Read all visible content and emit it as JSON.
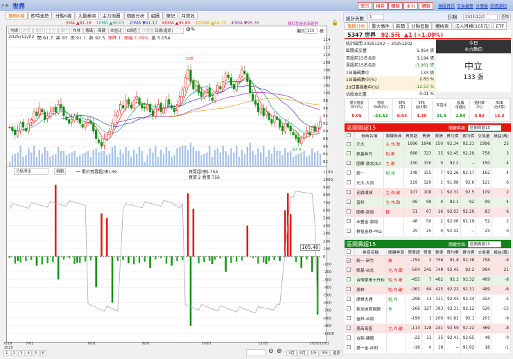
{
  "window": {
    "title": "世界",
    "search_icon": "search-icon"
  },
  "left_tabs": [
    "籌碼K線",
    "即時走勢",
    "分點K線",
    "大量券商",
    "主力地圖",
    "個股分析",
    "組圖",
    "筆記",
    "月營收"
  ],
  "ma_legend": [
    {
      "label": "5MA ▲91.16",
      "color": "#e31b1b"
    },
    {
      "label": "10MA ▲90.03",
      "color": "#20a090"
    },
    {
      "label": "20MA ▼91.17",
      "color": "#3040c0"
    },
    {
      "label": "60MA ▲95.80",
      "color": "#e31b1b"
    },
    {
      "label": "100MA ▲94.73",
      "color": "#e0a020"
    },
    {
      "label": "40MA ▼95.76",
      "color": "#a030a0"
    }
  ],
  "ma_note": "標紅色是為漸趨勢",
  "chart_toolbar": [
    "均線",
    "外資",
    "投信",
    "主力",
    "散戶",
    "布林",
    "籌碼",
    "庫藏",
    "本益比",
    "K線值",
    "分價圖"
  ],
  "chart_select": "日線(還原)",
  "display_label": "顯示",
  "display_value": "115",
  "display_unit": "根",
  "ohlc": {
    "date": "2025/12/02",
    "open": "開 91.7",
    "high": "高 93",
    "low": "低 91.1",
    "close": "收 92.5",
    "change": "漲跌 1",
    "pct": "漲幅 1.09%",
    "vol": "量 5,054"
  },
  "price_axis": [
    "114",
    "112",
    "110",
    "108",
    "106",
    "104",
    "102",
    "100",
    "98",
    "96",
    "94",
    "92",
    "90",
    "88",
    "86",
    "84",
    "82"
  ],
  "annotations": {
    "high": "108",
    "low": "87.0"
  },
  "lower": {
    "select": "分點淨出",
    "button": "相關",
    "legend1": "一 累計買賣超(張)-39",
    "legend2": "買賣超(張)-754",
    "legend3": "買張 2 賣張 756",
    "current": "105.48",
    "axis": [
      "1100",
      "1000",
      "900",
      "800",
      "700",
      "600",
      "500",
      "400",
      "300",
      "200",
      "100",
      "0",
      "-100",
      "-200",
      "-300",
      "-400",
      "-500",
      "-600",
      "-700",
      "-800",
      "-900",
      "-1000"
    ]
  },
  "x_axis": [
    "6/19\n2025",
    "7/01",
    "8/01",
    "9/01",
    "10/01",
    "11/03",
    "2025/12/02"
  ],
  "pages": [
    "1",
    "2",
    "3",
    "4",
    "5",
    "6"
  ],
  "range_buttons": [
    "3月",
    "6月",
    "1年",
    "3年",
    "還原"
  ],
  "chart_data": {
    "type": "candlestick",
    "ylim": [
      82,
      114
    ],
    "closes": [
      91,
      90,
      89,
      90,
      92,
      91,
      90,
      92,
      93,
      95,
      94,
      96,
      95,
      93,
      94,
      95,
      96,
      95,
      97,
      96,
      94,
      93,
      92,
      93,
      94,
      93,
      92,
      91,
      92,
      93,
      92,
      90,
      88,
      87,
      86,
      88,
      89,
      90,
      92,
      94,
      95,
      97,
      96,
      98,
      97,
      96,
      98,
      99,
      97,
      96,
      96,
      97,
      95,
      94,
      96,
      97,
      95,
      96,
      98,
      97,
      96,
      95,
      97,
      99,
      101,
      104,
      106,
      103,
      101,
      102,
      100,
      99,
      100,
      101,
      99,
      98,
      100,
      102,
      101,
      103,
      105,
      104,
      102,
      101,
      103,
      104,
      106,
      105,
      103,
      100,
      98,
      97,
      95,
      96,
      94,
      95,
      93,
      92,
      94,
      93,
      91,
      90,
      92,
      91,
      90,
      89,
      88,
      87,
      88,
      89,
      90,
      89,
      91,
      90,
      91,
      92.5
    ],
    "net_buy": [
      [
        3,
        -60
      ],
      [
        10,
        -120
      ],
      [
        17,
        930
      ],
      [
        18,
        -300
      ],
      [
        25,
        -80
      ],
      [
        32,
        -400
      ],
      [
        34,
        560
      ],
      [
        36,
        500
      ],
      [
        38,
        -600
      ],
      [
        44,
        -90
      ],
      [
        52,
        -150
      ],
      [
        60,
        -120
      ],
      [
        66,
        820
      ],
      [
        67,
        -900
      ],
      [
        68,
        620
      ],
      [
        75,
        -100
      ],
      [
        80,
        -200
      ],
      [
        88,
        400
      ],
      [
        95,
        -100
      ],
      [
        100,
        -60
      ],
      [
        102,
        600
      ],
      [
        103,
        820
      ],
      [
        104,
        550
      ],
      [
        108,
        -150
      ],
      [
        112,
        -200
      ],
      [
        114,
        -754
      ]
    ],
    "cumulative": [
      [
        0,
        650
      ],
      [
        28,
        700
      ],
      [
        29,
        -650
      ],
      [
        40,
        -700
      ],
      [
        42,
        650
      ],
      [
        60,
        700
      ],
      [
        64,
        650
      ],
      [
        65,
        -650
      ],
      [
        90,
        -700
      ],
      [
        100,
        -650
      ],
      [
        104,
        800
      ],
      [
        112,
        850
      ],
      [
        113,
        400
      ],
      [
        114,
        -750
      ]
    ]
  },
  "right": {
    "top_buttons": [
      "警示",
      "相券",
      "體驗",
      "主力",
      "體驗"
    ],
    "top_links": [
      "個股資訊",
      "交易彙整",
      "分價量",
      "訊價通知"
    ],
    "days_label": "統計天數",
    "days_value": "1",
    "date_label": "日期",
    "date_value": "2025/12/2",
    "query": "查詢",
    "tabs": [
      "籌碼分析",
      "重大事件",
      "新聞",
      "分點追蹤",
      "體檢表",
      "法人目標(105元)",
      "ETF"
    ],
    "stock": {
      "name": "5347 世界",
      "price": "92.5元",
      "change": "▲1 (+1.09%)"
    },
    "stats": [
      [
        "統計區間 20251202 ~ 20251202",
        ""
      ],
      [
        "區間成交量",
        "5,054 張"
      ],
      [
        "買超前15名合計",
        "3,194 張"
      ],
      [
        "賣超前15名合計",
        "-3,061 張"
      ],
      [
        "1日籌碼集中",
        "133 張"
      ],
      [
        "1日籌碼集中(%)",
        "2.63 %"
      ],
      [
        "20日籌碼集中(%)",
        "-12.53 %"
      ],
      [
        "佔股本比重",
        "0.01 %"
      ],
      [
        "區間周轉率",
        "0.27 %"
      ]
    ],
    "today_title": "今日",
    "today_sub": "主力動向",
    "today_state": "中立",
    "today_qty": "133 張",
    "metrics_head": [
      "累計營收\nYoY(%)",
      "營收\nMoM(%)",
      "EPS\n(季)",
      "EPS\n(近4季)",
      "本益比",
      "股價\n淨值比",
      "殖利率\n(%)",
      "ROE\n(近4季)"
    ],
    "metrics": [
      "9.05",
      "-23.52",
      "0.93",
      "4.29",
      "21.5",
      "2.84",
      "4.92",
      "13.2"
    ],
    "buy_title": "區間買超15",
    "buy_key": "關鍵券商:",
    "buy_select": "區間買超15",
    "cols": [
      "券商名稱",
      "關鍵券商",
      "買賣超",
      "買張",
      "賣張",
      "買均價",
      "賣均價",
      "交易量",
      "損益(萬)"
    ],
    "buy_rows": [
      [
        "元大",
        "主,作,散",
        "1696",
        "1846",
        "150",
        "92.34",
        "92.21",
        "1996",
        "25",
        "g"
      ],
      [
        "凱基新竹",
        "短,散",
        "688",
        "723",
        "35",
        "92.45",
        "92.29",
        "758",
        "3",
        "g"
      ],
      [
        "國票-敦北法人",
        "主,散",
        "150",
        "150",
        "0",
        "92.2",
        "--",
        "150",
        "4",
        "g"
      ],
      [
        "統一",
        "短,作",
        "148",
        "155",
        "7",
        "92.26",
        "92.17",
        "162",
        "4",
        ""
      ],
      [
        "元大-大同",
        "",
        "119",
        "120",
        "1",
        "91.98",
        "92.6",
        "121",
        "6",
        ""
      ],
      [
        "花旗環球",
        "主,作,散",
        "107",
        "108",
        "1",
        "92.31",
        "92.5",
        "109",
        "2",
        "r"
      ],
      [
        "富邦",
        "主,作,散",
        "99",
        "99",
        "0",
        "92.1",
        "92",
        "99",
        "4",
        "g"
      ],
      [
        "國泰-敦南",
        "散",
        "51",
        "67",
        "16",
        "92.03",
        "92.29",
        "83",
        "6",
        "r"
      ],
      [
        "永豐金-敦南",
        "",
        "48",
        "50",
        "2",
        "92.06",
        "92.19",
        "52",
        "2",
        ""
      ],
      [
        "群益金鼎-中山",
        "",
        "25",
        "25",
        "0",
        "92.42",
        "--",
        "25",
        "0",
        ""
      ]
    ],
    "sell_title": "區間賣超15",
    "sell_key": "關鍵券商:",
    "sell_select": "區間賣超15",
    "sell_rows": [
      [
        "統一-新竹",
        "散",
        "-754",
        "2",
        "756",
        "91.8",
        "92.38",
        "758",
        "-9",
        "r"
      ],
      [
        "凱基-台北",
        "主,作,散",
        "-504",
        "245",
        "749",
        "92.45",
        "92.2",
        "994",
        "-21",
        "r"
      ],
      [
        "台灣摩根士丹利",
        "短,作,散",
        "-455",
        "7",
        "462",
        "92.2",
        "92.32",
        "469",
        "-8",
        "g"
      ],
      [
        "美林",
        "短,作,散",
        "-361",
        "64",
        "425",
        "92.22",
        "92.31",
        "489",
        "-6",
        "r"
      ],
      [
        "摩根大通",
        "短,作",
        "-298",
        "13",
        "311",
        "92.45",
        "92.34",
        "324",
        "-5",
        ""
      ],
      [
        "新加坡商瑞銀",
        "作",
        "-266",
        "127",
        "393",
        "92.31",
        "92.12",
        "520",
        "-15",
        ""
      ],
      [
        "富邦-台南",
        "",
        "-199",
        "1",
        "200",
        "91.82",
        "92.1",
        "201",
        "-9",
        ""
      ],
      [
        "美商高盛",
        "主,作,散",
        "-113",
        "128",
        "241",
        "92.59",
        "92.22",
        "369",
        "-8",
        "r"
      ],
      [
        "台新-建國",
        "",
        "-22",
        "13",
        "35",
        "92.41",
        "92.65",
        "48",
        "0",
        ""
      ],
      [
        "第一金-台和",
        "",
        "-18",
        "0",
        "18",
        "--",
        "91.92",
        "18",
        "-1",
        ""
      ]
    ]
  }
}
